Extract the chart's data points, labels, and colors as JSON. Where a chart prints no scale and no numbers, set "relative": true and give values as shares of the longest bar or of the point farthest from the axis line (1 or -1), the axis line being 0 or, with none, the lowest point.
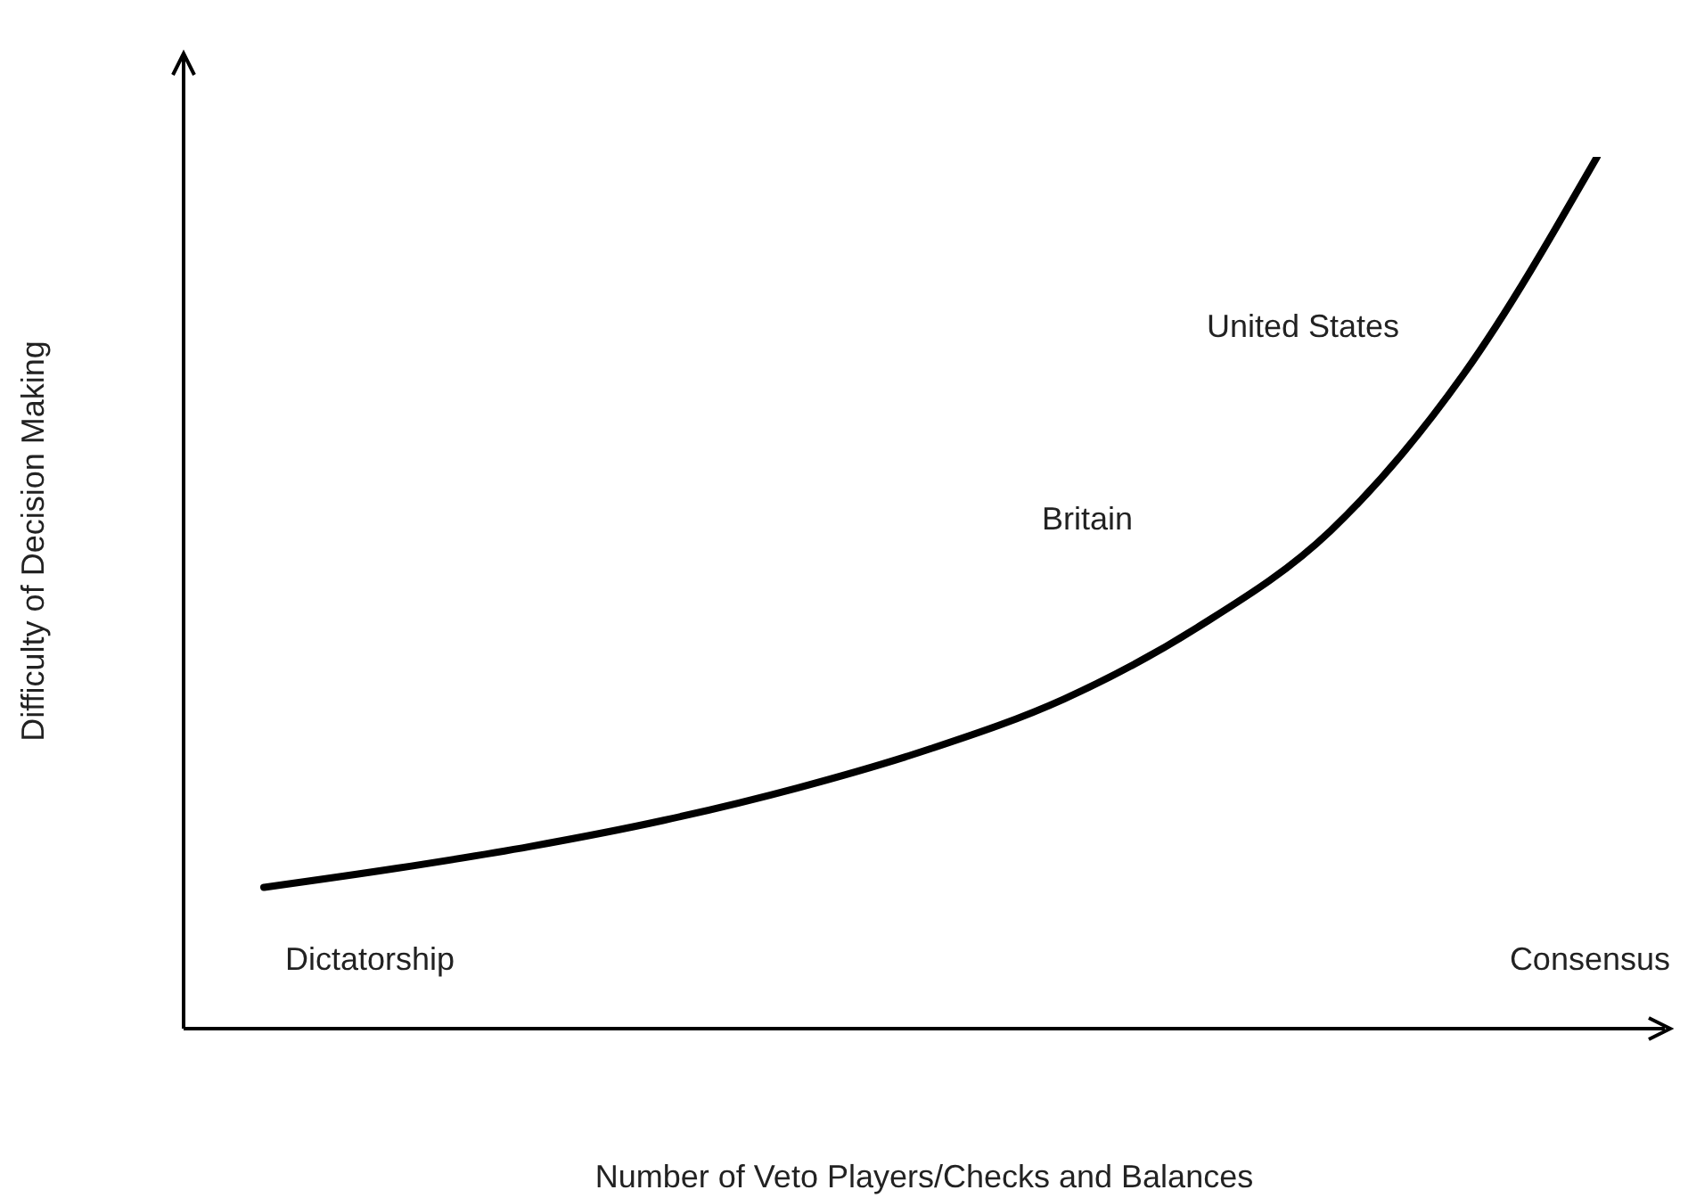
{
  "chart_data": {
    "type": "line",
    "relative": true,
    "xlabel": "Number of Veto Players/Checks and Balances",
    "ylabel": "Difficulty of Decision Making",
    "categories": [
      null,
      null,
      null,
      null,
      null,
      null,
      null,
      null,
      null,
      null,
      null
    ],
    "series": [
      {
        "color": "#000000",
        "values": [
          0.162,
          0.184,
          0.209,
          0.239,
          0.276,
          0.321,
          0.378,
          0.46,
          0.571,
          0.751,
          1
        ]
      }
    ],
    "annotations": [
      "Dictatorship",
      "Consensus",
      "Britain",
      "United States"
    ],
    "grid": false,
    "legend": false,
    "marker": "none",
    "line_style": "solid"
  }
}
